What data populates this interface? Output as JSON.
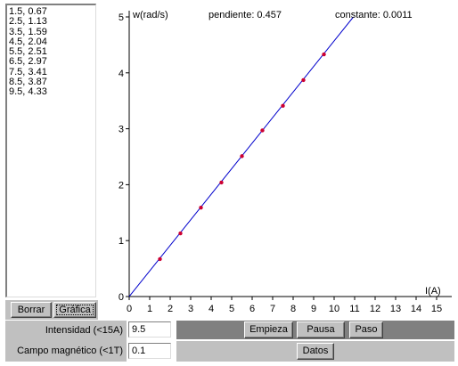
{
  "data_list": [
    "1.5, 0.67",
    "2.5, 1.13",
    "3.5, 1.59",
    "4.5, 2.04",
    "5.5, 2.51",
    "6.5, 2.97",
    "7.5, 3.41",
    "8.5, 3.87",
    "9.5, 4.33"
  ],
  "buttons": {
    "borrar": "Borrar",
    "grafica": "Gráfica",
    "empieza": "Empieza",
    "pausa": "Pausa",
    "paso": "Paso",
    "datos": "Datos"
  },
  "inputs": {
    "intensidad": {
      "label": "Intensidad (<15A)",
      "value": "9.5"
    },
    "campo": {
      "label": "Campo magnético (<1T)",
      "value": "0.1"
    }
  },
  "colors": {
    "panel": "#c0c0c0",
    "dark_bar": "#808080",
    "line": "#0000cc",
    "point": "#cc0033"
  },
  "chart_data": {
    "type": "scatter",
    "ylabel": "w(rad/s)",
    "xlabel": "I(A)",
    "pendiente_text": "pendiente: 0.457",
    "constante_text": "constante: 0.0011",
    "xlim": [
      0,
      15
    ],
    "ylim": [
      0,
      5
    ],
    "xticks": [
      0,
      1,
      2,
      3,
      4,
      5,
      6,
      7,
      8,
      9,
      10,
      11,
      12,
      13,
      14,
      15
    ],
    "yticks": [
      0,
      1,
      2,
      3,
      4,
      5
    ],
    "series": [
      {
        "x": [
          1.5,
          2.5,
          3.5,
          4.5,
          5.5,
          6.5,
          7.5,
          8.5,
          9.5
        ],
        "y": [
          0.67,
          1.13,
          1.59,
          2.04,
          2.51,
          2.97,
          3.41,
          3.87,
          4.33
        ]
      }
    ],
    "fit": {
      "slope": 0.457,
      "intercept": 0.0011
    },
    "grid": false
  }
}
